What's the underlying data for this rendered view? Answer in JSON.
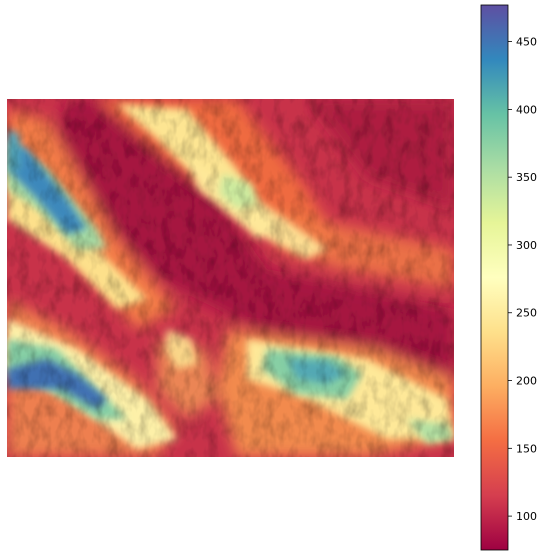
{
  "chart_data": {
    "type": "heatmap",
    "colormap": "Spectral_r",
    "value_range": [
      75,
      477
    ],
    "colorbar": {
      "orientation": "vertical",
      "position": "right",
      "ticks": [
        100,
        150,
        200,
        250,
        300,
        350,
        400,
        450
      ],
      "tick_labels": [
        "100",
        "150",
        "200",
        "250",
        "300",
        "350",
        "400",
        "450"
      ]
    },
    "axes_visible": false
  }
}
